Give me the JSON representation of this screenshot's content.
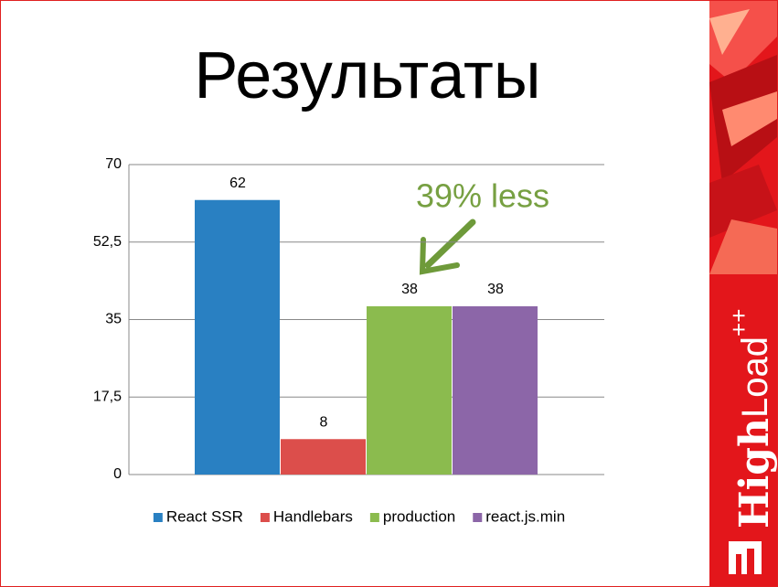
{
  "chart_data": {
    "type": "bar",
    "title": "Результаты",
    "categories": [
      null
    ],
    "series": [
      {
        "name": "React SSR",
        "color": "#2980c2",
        "values": [
          62
        ]
      },
      {
        "name": "Handlebars",
        "color": "#dc4e4b",
        "values": [
          8
        ]
      },
      {
        "name": "production",
        "color": "#8bbb4e",
        "values": [
          38
        ]
      },
      {
        "name": "react.js.min",
        "color": "#8c66a8",
        "values": [
          38
        ]
      }
    ],
    "ylim": [
      0,
      70
    ],
    "yticks": [
      0,
      {
        "value": 17.5,
        "label": "17,5"
      },
      35,
      {
        "value": 52.5,
        "label": "52,5"
      },
      70
    ],
    "grid": true,
    "legend": "bottom",
    "annotation": "39% less"
  },
  "logo": {
    "parts": [
      "High",
      "Load",
      "++"
    ]
  }
}
